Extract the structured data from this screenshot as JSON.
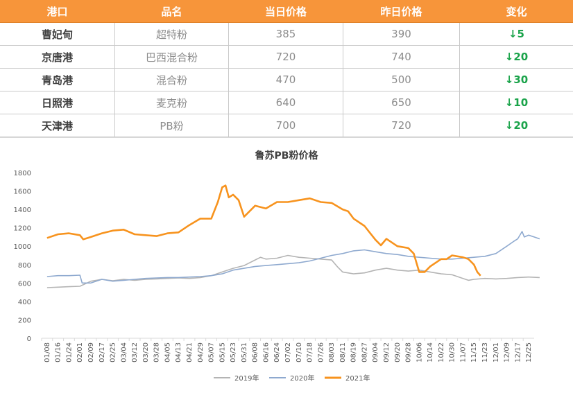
{
  "table": {
    "headers": [
      "港口",
      "品名",
      "当日价格",
      "昨日价格",
      "变化"
    ],
    "rows": [
      {
        "port": "曹妃甸",
        "product": "超特粉",
        "today": "385",
        "yesterday": "390",
        "change": "↓5"
      },
      {
        "port": "京唐港",
        "product": "巴西混合粉",
        "today": "720",
        "yesterday": "740",
        "change": "↓20"
      },
      {
        "port": "青岛港",
        "product": "混合粉",
        "today": "470",
        "yesterday": "500",
        "change": "↓30"
      },
      {
        "port": "日照港",
        "product": "麦克粉",
        "today": "640",
        "yesterday": "650",
        "change": "↓10"
      },
      {
        "port": "天津港",
        "product": "PB粉",
        "today": "700",
        "yesterday": "720",
        "change": "↓20"
      }
    ]
  },
  "colors": {
    "header_bg": "#f7953a",
    "change_down": "#1aa34a",
    "series_2019": "#b4b4b4",
    "series_2020": "#8ea9cf",
    "series_2021": "#f7931e"
  },
  "chart_data": {
    "type": "line",
    "title": "鲁苏PB粉价格",
    "ylim": [
      0,
      1800
    ],
    "yticks": [
      "0",
      "200",
      "400",
      "600",
      "800",
      "1000",
      "1200",
      "1400",
      "1600",
      "1800"
    ],
    "x_ticks": [
      "01/08",
      "01/16",
      "01/24",
      "02/01",
      "02/09",
      "02/17",
      "02/25",
      "03/04",
      "03/12",
      "03/20",
      "03/28",
      "04/05",
      "04/13",
      "04/21",
      "04/29",
      "05/07",
      "05/15",
      "05/23",
      "05/31",
      "06/08",
      "06/16",
      "06/24",
      "07/02",
      "07/10",
      "07/18",
      "07/26",
      "08/03",
      "08/11",
      "08/19",
      "08/27",
      "09/04",
      "09/12",
      "09/20",
      "09/28",
      "10/06",
      "10/14",
      "10/22",
      "10/30",
      "11/07",
      "11/15",
      "11/23",
      "12/01",
      "12/09",
      "12/17",
      "12/25"
    ],
    "legend_position": "bottom",
    "series": [
      {
        "name": "2019年",
        "points": [
          [
            0,
            550
          ],
          [
            1,
            555
          ],
          [
            2,
            560
          ],
          [
            3,
            565
          ],
          [
            4,
            620
          ],
          [
            4.5,
            630
          ],
          [
            5,
            640
          ],
          [
            6,
            625
          ],
          [
            7,
            640
          ],
          [
            8,
            630
          ],
          [
            9,
            640
          ],
          [
            10,
            645
          ],
          [
            11,
            650
          ],
          [
            12,
            655
          ],
          [
            13,
            650
          ],
          [
            14,
            660
          ],
          [
            15,
            680
          ],
          [
            16,
            720
          ],
          [
            17,
            760
          ],
          [
            18,
            790
          ],
          [
            19,
            850
          ],
          [
            19.5,
            880
          ],
          [
            20,
            860
          ],
          [
            21,
            870
          ],
          [
            22,
            900
          ],
          [
            23,
            880
          ],
          [
            24,
            870
          ],
          [
            25,
            860
          ],
          [
            26,
            850
          ],
          [
            26.5,
            780
          ],
          [
            27,
            720
          ],
          [
            28,
            700
          ],
          [
            29,
            710
          ],
          [
            30,
            740
          ],
          [
            31,
            760
          ],
          [
            32,
            740
          ],
          [
            33,
            730
          ],
          [
            34,
            740
          ],
          [
            35,
            720
          ],
          [
            36,
            700
          ],
          [
            37,
            690
          ],
          [
            38,
            650
          ],
          [
            38.5,
            630
          ],
          [
            39,
            640
          ],
          [
            40,
            650
          ],
          [
            41,
            645
          ],
          [
            42,
            650
          ],
          [
            43,
            660
          ],
          [
            44,
            665
          ],
          [
            45,
            660
          ]
        ]
      },
      {
        "name": "2020年",
        "points": [
          [
            0,
            670
          ],
          [
            1,
            680
          ],
          [
            2,
            680
          ],
          [
            3,
            685
          ],
          [
            3.2,
            600
          ],
          [
            4,
            600
          ],
          [
            5,
            640
          ],
          [
            6,
            620
          ],
          [
            7,
            630
          ],
          [
            8,
            640
          ],
          [
            9,
            650
          ],
          [
            10,
            655
          ],
          [
            11,
            660
          ],
          [
            12,
            660
          ],
          [
            13,
            665
          ],
          [
            14,
            670
          ],
          [
            15,
            680
          ],
          [
            16,
            700
          ],
          [
            17,
            740
          ],
          [
            18,
            760
          ],
          [
            19,
            780
          ],
          [
            20,
            790
          ],
          [
            21,
            800
          ],
          [
            22,
            810
          ],
          [
            23,
            820
          ],
          [
            24,
            840
          ],
          [
            25,
            870
          ],
          [
            26,
            900
          ],
          [
            27,
            920
          ],
          [
            28,
            950
          ],
          [
            29,
            960
          ],
          [
            30,
            940
          ],
          [
            31,
            920
          ],
          [
            32,
            910
          ],
          [
            33,
            890
          ],
          [
            34,
            880
          ],
          [
            35,
            870
          ],
          [
            36,
            860
          ],
          [
            37,
            860
          ],
          [
            38,
            870
          ],
          [
            39,
            880
          ],
          [
            40,
            890
          ],
          [
            41,
            920
          ],
          [
            42,
            1000
          ],
          [
            42.6,
            1050
          ],
          [
            43,
            1080
          ],
          [
            43.4,
            1160
          ],
          [
            43.6,
            1100
          ],
          [
            44,
            1120
          ],
          [
            44.5,
            1100
          ],
          [
            45,
            1080
          ]
        ]
      },
      {
        "name": "2021年",
        "points": [
          [
            0,
            1090
          ],
          [
            1,
            1130
          ],
          [
            2,
            1140
          ],
          [
            3,
            1120
          ],
          [
            3.3,
            1075
          ],
          [
            4,
            1100
          ],
          [
            5,
            1140
          ],
          [
            6,
            1170
          ],
          [
            7,
            1180
          ],
          [
            8,
            1130
          ],
          [
            9,
            1120
          ],
          [
            10,
            1110
          ],
          [
            11,
            1140
          ],
          [
            12,
            1150
          ],
          [
            13,
            1230
          ],
          [
            14,
            1300
          ],
          [
            15,
            1300
          ],
          [
            15.6,
            1480
          ],
          [
            16,
            1640
          ],
          [
            16.3,
            1660
          ],
          [
            16.6,
            1530
          ],
          [
            17,
            1560
          ],
          [
            17.5,
            1500
          ],
          [
            18,
            1320
          ],
          [
            19,
            1440
          ],
          [
            20,
            1410
          ],
          [
            21,
            1480
          ],
          [
            22,
            1480
          ],
          [
            23,
            1500
          ],
          [
            24,
            1520
          ],
          [
            25,
            1480
          ],
          [
            26,
            1470
          ],
          [
            27,
            1400
          ],
          [
            27.5,
            1380
          ],
          [
            28,
            1300
          ],
          [
            29,
            1220
          ],
          [
            30,
            1070
          ],
          [
            30.5,
            1010
          ],
          [
            31,
            1080
          ],
          [
            32,
            1000
          ],
          [
            33,
            980
          ],
          [
            33.5,
            920
          ],
          [
            34,
            720
          ],
          [
            34.5,
            720
          ],
          [
            35,
            780
          ],
          [
            36,
            860
          ],
          [
            36.5,
            860
          ],
          [
            37,
            900
          ],
          [
            38,
            880
          ],
          [
            38.5,
            860
          ],
          [
            39,
            800
          ],
          [
            39.3,
            720
          ],
          [
            39.6,
            680
          ]
        ]
      }
    ]
  }
}
